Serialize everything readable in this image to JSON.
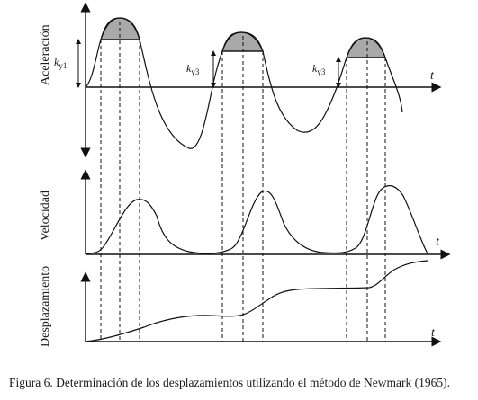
{
  "figure": {
    "caption": "Figura 6. Determinación de los desplazamientos utilizando el método de Newmark (1965).",
    "panels": {
      "acceleration": {
        "ylabel": "Aceleración",
        "time_label": "t"
      },
      "velocity": {
        "ylabel": "Velocidad",
        "time_label": "t"
      },
      "displacement": {
        "ylabel": "Desplazamiento",
        "time_label": "t"
      }
    },
    "ky_labels": [
      {
        "base": "k",
        "sub": "y1"
      },
      {
        "base": "k",
        "sub": "y3"
      },
      {
        "base": "k",
        "sub": "y3"
      }
    ]
  }
}
